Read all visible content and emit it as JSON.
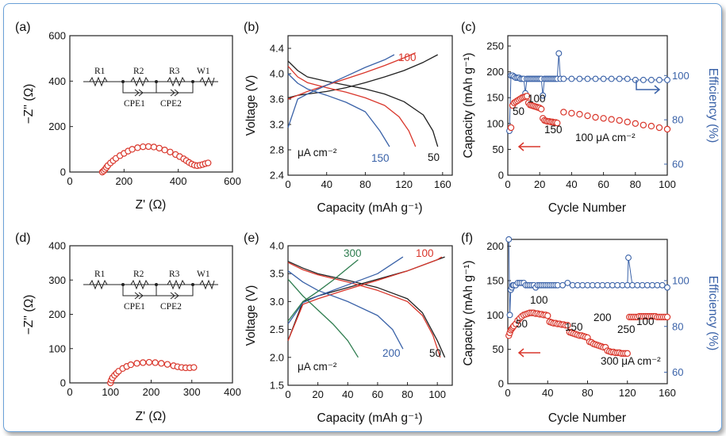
{
  "colors": {
    "red": "#d9362b",
    "blue": "#3a62a8",
    "green": "#2e7d4f",
    "black": "#222222",
    "dark_red": "#8c1d18"
  },
  "panels": {
    "a": {
      "label": "(a)",
      "xlabel": "Z' (Ω)",
      "ylabel": "−Z'' (Ω)",
      "xticks": [
        "0",
        "200",
        "400",
        "600"
      ],
      "yticks": [
        "0",
        "200",
        "400",
        "600"
      ],
      "circuit": [
        "R1",
        "R2",
        "R3",
        "W1",
        "CPE1",
        "CPE2"
      ]
    },
    "b": {
      "label": "(b)",
      "xlabel": "Capacity (mAh g⁻¹)",
      "ylabel": "Voltage (V)",
      "xticks": [
        "0",
        "40",
        "80",
        "120",
        "160"
      ],
      "yticks": [
        "2.4",
        "2.8",
        "3.2",
        "3.6",
        "4.0",
        "4.4"
      ],
      "ann": {
        "unit": "μA cm⁻²",
        "r50": "50",
        "r100": "100",
        "r150": "150"
      }
    },
    "c": {
      "label": "(c)",
      "xlabel": "Cycle Number",
      "ylabel": "Capacity (mAh g⁻¹)",
      "y2label": "Efficiency (%)",
      "xticks": [
        "0",
        "20",
        "40",
        "60",
        "80",
        "100"
      ],
      "yticks": [
        "0",
        "50",
        "100",
        "150",
        "200",
        "250"
      ],
      "y2ticks": [
        "60",
        "80",
        "100"
      ],
      "ann": {
        "r50": "50",
        "r100": "100",
        "r150": "150",
        "r100b": "100 μA cm⁻²"
      }
    },
    "d": {
      "label": "(d)",
      "xlabel": "Z' (Ω)",
      "ylabel": "−Z'' (Ω)",
      "xticks": [
        "0",
        "100",
        "200",
        "300",
        "400"
      ],
      "yticks": [
        "0",
        "100",
        "200",
        "300",
        "400"
      ],
      "circuit": [
        "R1",
        "R2",
        "R3",
        "W1",
        "CPE1",
        "CPE2"
      ]
    },
    "e": {
      "label": "(e)",
      "xlabel": "Capacity (mAh g⁻¹)",
      "ylabel": "Voltage (V)",
      "xticks": [
        "0",
        "20",
        "40",
        "60",
        "80",
        "100"
      ],
      "yticks": [
        "1.5",
        "2.0",
        "2.5",
        "3.0",
        "3.5",
        "4.0"
      ],
      "ann": {
        "unit": "μA cm⁻²",
        "r300": "300",
        "r100": "100",
        "r200": "200",
        "r50": "50"
      }
    },
    "f": {
      "label": "(f)",
      "xlabel": "Cycle Number",
      "ylabel": "Capacity (mAh g⁻¹)",
      "y2label": "Efficiency (%)",
      "xticks": [
        "0",
        "40",
        "80",
        "120",
        "160"
      ],
      "yticks": [
        "0",
        "50",
        "100",
        "150",
        "200"
      ],
      "y2ticks": [
        "60",
        "80",
        "100"
      ],
      "ann": {
        "r50": "50",
        "r100": "100",
        "r150": "150",
        "r200": "200",
        "r250": "250",
        "r300": "300 μA cm⁻²",
        "r100b": "100"
      }
    }
  },
  "chart_data": [
    {
      "type": "scatter",
      "panel": "a",
      "xlim": [
        0,
        600
      ],
      "ylim": [
        0,
        600
      ],
      "series": [
        {
          "x": [
            120,
            125,
            130,
            135,
            140,
            150,
            160,
            170,
            185,
            200,
            215,
            230,
            250,
            270,
            290,
            310,
            330,
            350,
            370,
            390,
            405,
            420,
            430,
            440,
            450,
            460,
            470,
            480,
            490,
            500,
            510
          ],
          "y": [
            0,
            5,
            12,
            20,
            28,
            40,
            50,
            60,
            72,
            82,
            92,
            100,
            107,
            111,
            112,
            110,
            105,
            97,
            88,
            77,
            68,
            58,
            50,
            42,
            35,
            30,
            28,
            30,
            33,
            37,
            40
          ]
        }
      ]
    },
    {
      "type": "line",
      "panel": "b",
      "xlim": [
        0,
        170
      ],
      "ylim": [
        2.4,
        4.6
      ],
      "series": [
        {
          "name": "50",
          "role": "charge",
          "x": [
            0,
            10,
            20,
            40,
            60,
            80,
            100,
            120,
            140,
            155
          ],
          "y": [
            3.62,
            3.66,
            3.68,
            3.72,
            3.78,
            3.86,
            3.95,
            4.05,
            4.18,
            4.3
          ]
        },
        {
          "name": "50",
          "role": "discharge",
          "x": [
            0,
            10,
            20,
            40,
            60,
            80,
            100,
            120,
            140,
            150,
            155
          ],
          "y": [
            4.2,
            4.05,
            3.95,
            3.88,
            3.82,
            3.76,
            3.68,
            3.56,
            3.35,
            3.1,
            2.85
          ]
        },
        {
          "name": "100",
          "role": "charge",
          "x": [
            0,
            10,
            20,
            40,
            60,
            80,
            100,
            120,
            132
          ],
          "y": [
            3.6,
            3.66,
            3.72,
            3.82,
            3.92,
            4.02,
            4.13,
            4.25,
            4.33
          ]
        },
        {
          "name": "100",
          "role": "discharge",
          "x": [
            0,
            10,
            20,
            40,
            60,
            80,
            100,
            115,
            125,
            132
          ],
          "y": [
            4.12,
            3.95,
            3.86,
            3.78,
            3.71,
            3.62,
            3.5,
            3.32,
            3.1,
            2.85
          ]
        },
        {
          "name": "150",
          "role": "charge",
          "x": [
            0,
            10,
            20,
            40,
            60,
            80,
            100,
            110
          ],
          "y": [
            3.15,
            3.6,
            3.68,
            3.82,
            3.96,
            4.1,
            4.22,
            4.3
          ]
        },
        {
          "name": "150",
          "role": "discharge",
          "x": [
            0,
            10,
            20,
            40,
            60,
            80,
            95,
            105
          ],
          "y": [
            4.0,
            3.85,
            3.76,
            3.66,
            3.55,
            3.4,
            3.1,
            2.85
          ]
        }
      ]
    },
    {
      "type": "scatter",
      "panel": "c",
      "xlim": [
        0,
        100
      ],
      "ylim": [
        0,
        270
      ],
      "y2lim": [
        55,
        118
      ],
      "series": [
        {
          "name": "Capacity",
          "x": [
            2,
            3,
            4,
            5,
            6,
            7,
            8,
            9,
            10,
            11,
            12,
            13,
            14,
            15,
            16,
            17,
            18,
            19,
            20,
            21,
            22,
            23,
            24,
            25,
            26,
            27,
            28,
            29,
            30,
            31,
            35,
            40,
            45,
            50,
            55,
            60,
            65,
            70,
            75,
            80,
            85,
            90,
            95,
            100
          ],
          "y": [
            92,
            135,
            140,
            142,
            144,
            146,
            148,
            150,
            151,
            152,
            153,
            140,
            136,
            135,
            134,
            133,
            132,
            131,
            130,
            128,
            110,
            106,
            105,
            104,
            104,
            103,
            103,
            102,
            102,
            101,
            122,
            120,
            118,
            115,
            112,
            110,
            108,
            106,
            103,
            100,
            97,
            95,
            92,
            89
          ]
        },
        {
          "name": "Efficiency",
          "x": [
            1,
            2,
            3,
            4,
            5,
            6,
            7,
            8,
            9,
            10,
            11,
            12,
            13,
            14,
            15,
            16,
            17,
            18,
            19,
            20,
            21,
            22,
            23,
            24,
            25,
            26,
            27,
            28,
            29,
            30,
            31,
            32,
            33,
            35,
            40,
            45,
            50,
            55,
            60,
            65,
            70,
            75,
            80,
            85,
            90,
            95,
            100
          ],
          "y": [
            75,
            100,
            100,
            99.5,
            99,
            99,
            99,
            98.5,
            98.5,
            98.5,
            92,
            98.5,
            98.5,
            98.5,
            98.5,
            98.5,
            98.5,
            98.5,
            98.5,
            98.5,
            98.5,
            91,
            98.5,
            98.5,
            98.5,
            98.5,
            98.5,
            98.5,
            98.5,
            98.5,
            98.5,
            110,
            98.5,
            98.5,
            98.5,
            98.5,
            98.5,
            98.5,
            98.5,
            98.5,
            98.5,
            98.5,
            98,
            98,
            98,
            98,
            98
          ]
        }
      ]
    },
    {
      "type": "scatter",
      "panel": "d",
      "xlim": [
        0,
        400
      ],
      "ylim": [
        0,
        400
      ],
      "series": [
        {
          "x": [
            100,
            102,
            105,
            110,
            115,
            120,
            130,
            140,
            150,
            165,
            180,
            195,
            210,
            225,
            240,
            255,
            265,
            275,
            285,
            295,
            305
          ],
          "y": [
            0,
            8,
            15,
            22,
            28,
            34,
            42,
            48,
            53,
            57,
            59,
            60,
            59,
            57,
            54,
            50,
            47,
            45,
            44,
            44,
            45
          ]
        }
      ]
    },
    {
      "type": "line",
      "panel": "e",
      "xlim": [
        0,
        110
      ],
      "ylim": [
        1.5,
        4.0
      ],
      "series": [
        {
          "name": "50",
          "role": "charge",
          "x": [
            0,
            10,
            20,
            40,
            60,
            80,
            100,
            105
          ],
          "y": [
            2.3,
            3.0,
            3.1,
            3.25,
            3.4,
            3.55,
            3.75,
            3.8
          ]
        },
        {
          "name": "50",
          "role": "discharge",
          "x": [
            0,
            10,
            20,
            40,
            60,
            80,
            90,
            95,
            100,
            105
          ],
          "y": [
            3.72,
            3.6,
            3.5,
            3.38,
            3.25,
            3.05,
            2.8,
            2.55,
            2.3,
            2.0
          ]
        },
        {
          "name": "100",
          "role": "charge",
          "x": [
            0,
            10,
            20,
            40,
            60,
            80,
            100,
            103
          ],
          "y": [
            2.3,
            2.95,
            3.05,
            3.22,
            3.38,
            3.55,
            3.75,
            3.8
          ]
        },
        {
          "name": "100",
          "role": "discharge",
          "x": [
            0,
            10,
            20,
            40,
            60,
            80,
            90,
            97,
            102
          ],
          "y": [
            3.7,
            3.57,
            3.48,
            3.35,
            3.2,
            3.0,
            2.75,
            2.4,
            2.0
          ]
        },
        {
          "name": "200",
          "role": "charge",
          "x": [
            0,
            10,
            20,
            40,
            60,
            77
          ],
          "y": [
            2.6,
            2.98,
            3.1,
            3.3,
            3.5,
            3.8
          ]
        },
        {
          "name": "200",
          "role": "discharge",
          "x": [
            0,
            10,
            20,
            40,
            60,
            70,
            77
          ],
          "y": [
            3.55,
            3.35,
            3.2,
            3.0,
            2.75,
            2.5,
            2.15
          ]
        },
        {
          "name": "300",
          "role": "charge",
          "x": [
            0,
            10,
            20,
            30,
            40,
            47
          ],
          "y": [
            2.65,
            3.0,
            3.18,
            3.38,
            3.6,
            3.75
          ]
        },
        {
          "name": "300",
          "role": "discharge",
          "x": [
            0,
            10,
            20,
            30,
            40,
            47
          ],
          "y": [
            3.4,
            3.1,
            2.85,
            2.6,
            2.3,
            2.0
          ]
        }
      ]
    },
    {
      "type": "scatter",
      "panel": "f",
      "xlim": [
        0,
        160
      ],
      "ylim": [
        0,
        210
      ],
      "y2lim": [
        55,
        118
      ],
      "series": [
        {
          "name": "Capacity",
          "x": [
            1,
            2,
            3,
            4,
            5,
            6,
            8,
            10,
            12,
            14,
            16,
            18,
            20,
            22,
            24,
            26,
            28,
            30,
            32,
            34,
            36,
            38,
            40,
            42,
            44,
            46,
            48,
            50,
            52,
            54,
            56,
            58,
            60,
            62,
            64,
            66,
            68,
            70,
            72,
            74,
            76,
            78,
            80,
            82,
            84,
            86,
            88,
            90,
            92,
            94,
            96,
            98,
            100,
            102,
            104,
            106,
            108,
            110,
            112,
            114,
            116,
            118,
            120,
            122,
            124,
            126,
            128,
            130,
            132,
            134,
            136,
            138,
            140,
            142,
            144,
            146,
            148,
            150,
            152,
            154,
            156,
            158,
            160
          ],
          "y": [
            70,
            74,
            78,
            80,
            82,
            84,
            87,
            92,
            95,
            98,
            100,
            101,
            102,
            103,
            103,
            103,
            102,
            102,
            101,
            101,
            100,
            100,
            99,
            90,
            89,
            88,
            88,
            87,
            87,
            86,
            86,
            85,
            85,
            75,
            74,
            73,
            72,
            71,
            70,
            70,
            69,
            68,
            67,
            61,
            60,
            58,
            57,
            56,
            55,
            54,
            53,
            53,
            48,
            47,
            46,
            46,
            45,
            45,
            45,
            44,
            44,
            44,
            44,
            97,
            97,
            97,
            97,
            97,
            98,
            98,
            98,
            98,
            98,
            98,
            98,
            98,
            98,
            97,
            97,
            97,
            97,
            97,
            97
          ]
        },
        {
          "name": "Efficiency",
          "x": [
            1,
            2,
            3,
            4,
            5,
            6,
            8,
            10,
            12,
            14,
            16,
            18,
            20,
            22,
            24,
            26,
            28,
            30,
            32,
            34,
            36,
            38,
            40,
            42,
            44,
            46,
            48,
            50,
            55,
            60,
            65,
            70,
            75,
            80,
            85,
            90,
            95,
            100,
            105,
            110,
            115,
            120,
            121,
            125,
            130,
            135,
            140,
            145,
            150,
            155,
            160
          ],
          "y": [
            118,
            85,
            96,
            97,
            98,
            98,
            98,
            99,
            99,
            99,
            99,
            98,
            98,
            98,
            98,
            98,
            97,
            98,
            98,
            98,
            98,
            98,
            98,
            98,
            98,
            98,
            98,
            98,
            98,
            99,
            98,
            98,
            98,
            98,
            98,
            98,
            98,
            98,
            98,
            98,
            98,
            98,
            110,
            98,
            98,
            98,
            98,
            98,
            98,
            98,
            97
          ]
        }
      ]
    }
  ]
}
